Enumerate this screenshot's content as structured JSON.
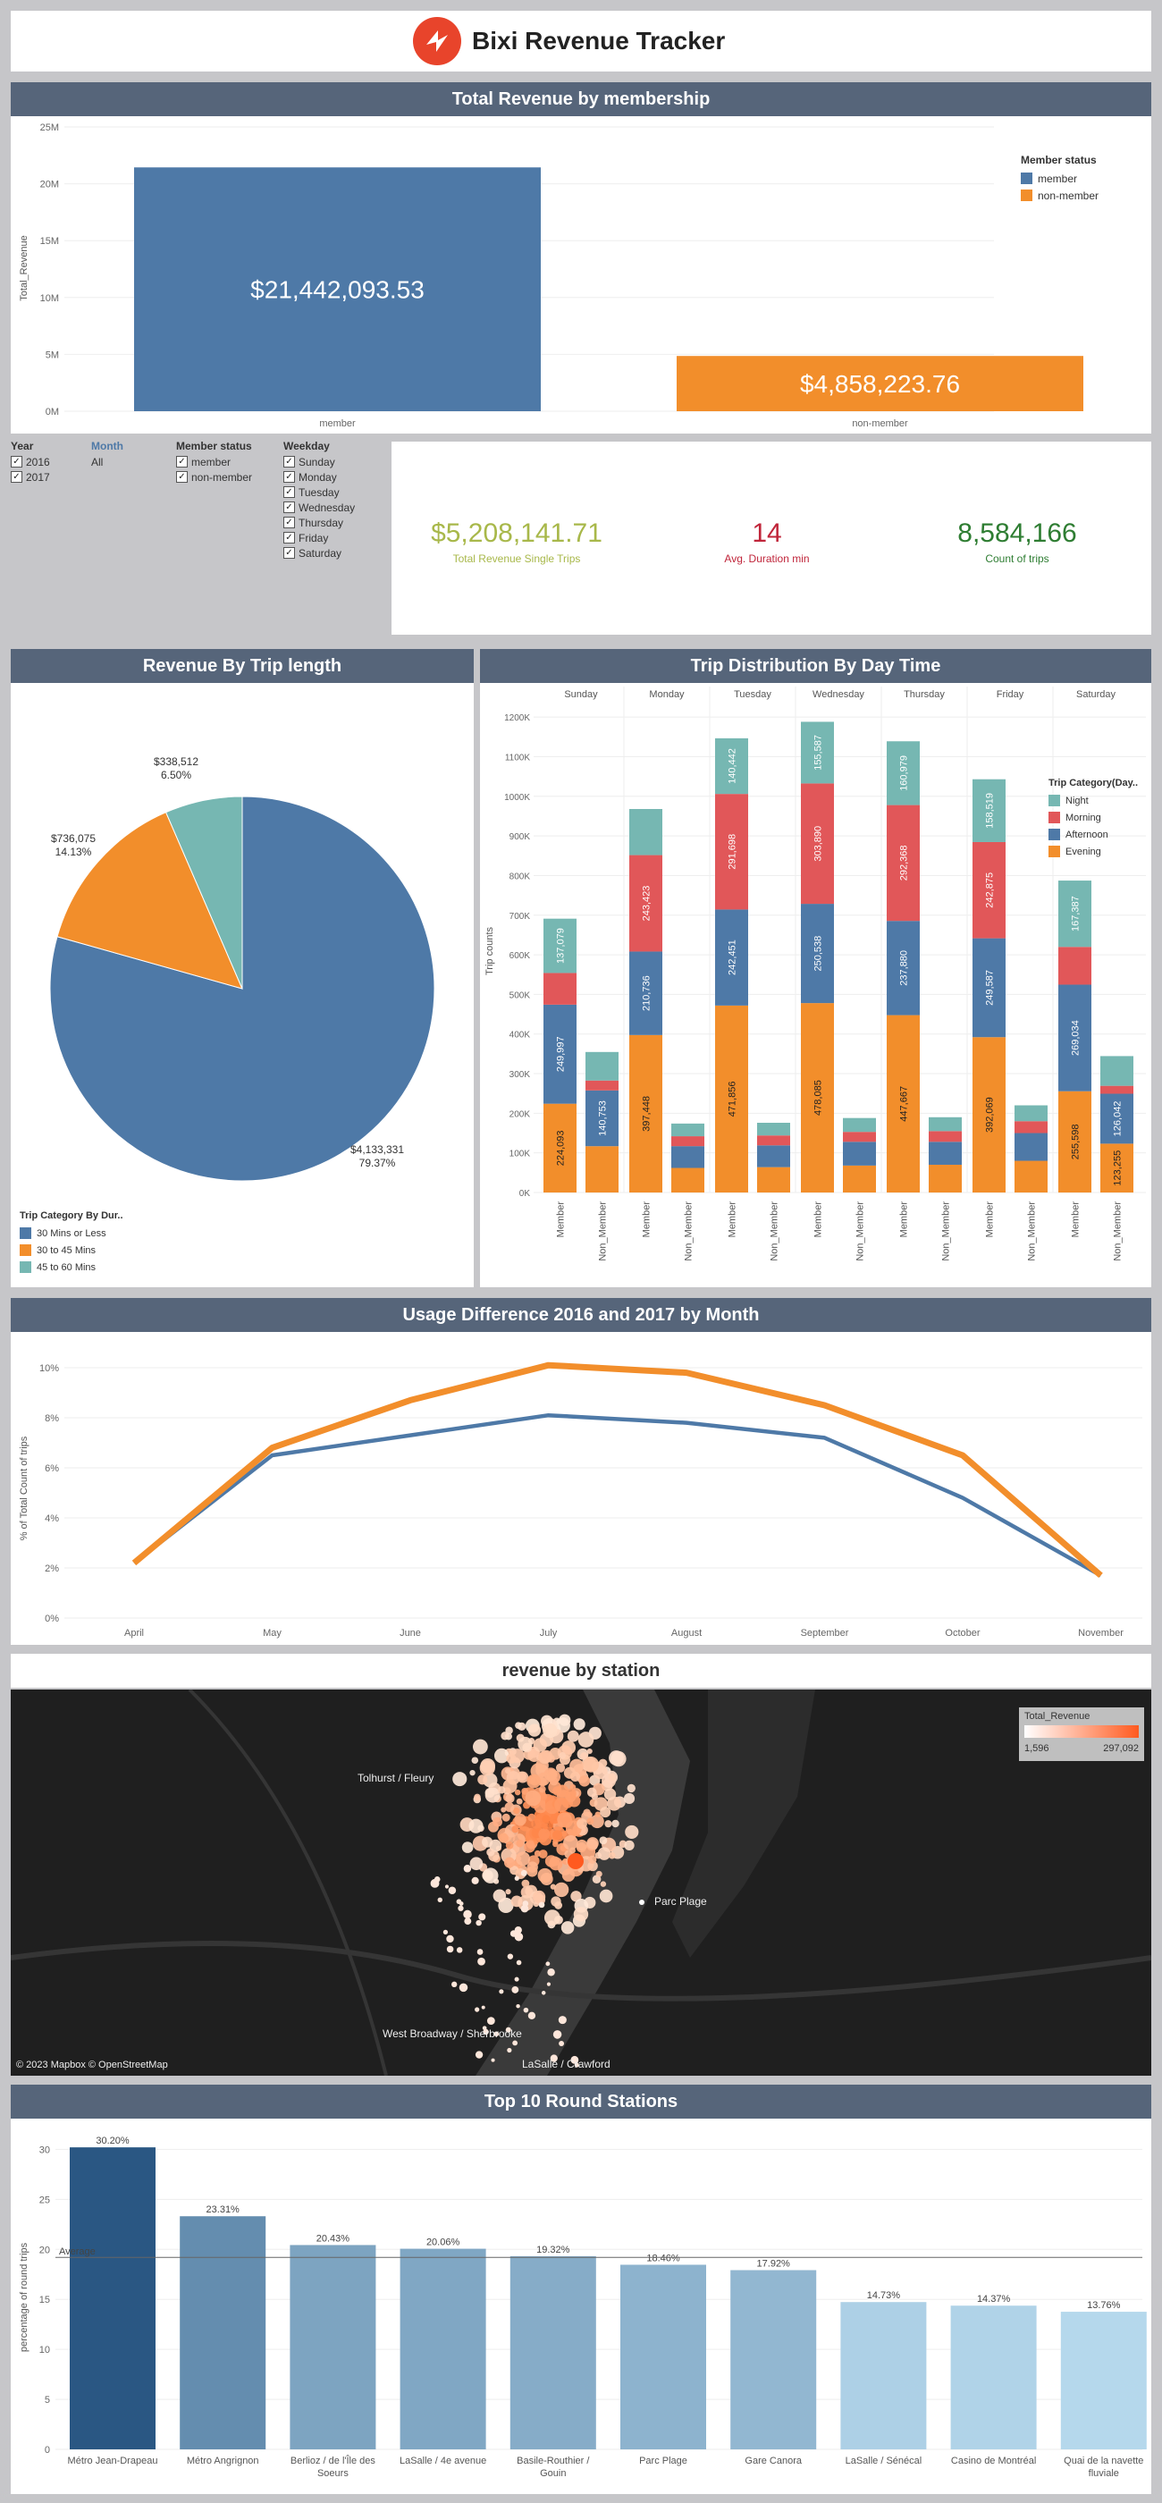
{
  "header": {
    "title": "Bixi Revenue Tracker",
    "logo": "bixi-logo-icon"
  },
  "colors": {
    "member": "#4e79a7",
    "non_member": "#f28e2b",
    "night": "#76b7b2",
    "morning": "#e15759",
    "afternoon": "#4e79a7",
    "evening": "#f28e2b",
    "panel_title_bg": "#56657a",
    "kpi_revenue": "#a8b84a",
    "kpi_duration": "#c0253a",
    "kpi_count": "#2e7d32",
    "year_2016": "#4e79a7",
    "year_2017": "#f28e2b",
    "round_dark": "#2a5783",
    "round_light": "#b5d8ec"
  },
  "revenue_by_membership": {
    "title": "Total Revenue by membership",
    "ylabel": "Total_Revenue",
    "yticks": [
      "0M",
      "5M",
      "10M",
      "15M",
      "20M",
      "25M"
    ],
    "legend_title": "Member status",
    "legend_items": [
      "member",
      "non-member"
    ],
    "value_labels": [
      "$21,442,093.53",
      "$4,858,223.76"
    ]
  },
  "filters": {
    "year_label": "Year",
    "years": [
      "2016",
      "2017"
    ],
    "month_label": "Month",
    "month_value": "All",
    "member_label": "Member status",
    "members": [
      "member",
      "non-member"
    ],
    "weekday_label": "Weekday",
    "weekdays": [
      "Sunday",
      "Monday",
      "Tuesday",
      "Wednesday",
      "Thursday",
      "Friday",
      "Saturday"
    ]
  },
  "kpis": {
    "revenue": {
      "value": "$5,208,141.71",
      "label": "Total Revenue Single Trips"
    },
    "duration": {
      "value": "14",
      "label": "Avg. Duration min"
    },
    "count": {
      "value": "8,584,166",
      "label": "Count of trips"
    }
  },
  "trip_length": {
    "title": "Revenue By Trip length",
    "labels": [
      "$4,133,331",
      "79.37%",
      "$736,075",
      "14.13%",
      "$338,512",
      "6.50%"
    ],
    "legend_title": "Trip Category By Dur..",
    "legend_items": [
      "30 Mins or Less",
      "30 to 45 Mins",
      "45 to 60 Mins"
    ]
  },
  "day_time": {
    "title": "Trip Distribution By Day Time",
    "ylabel": "Trip counts",
    "days": [
      "Sunday",
      "Monday",
      "Tuesday",
      "Wednesday",
      "Thursday",
      "Friday",
      "Saturday"
    ],
    "member_labels": [
      "Member",
      "Non_Member"
    ],
    "legend_title": "Trip Category(Day..",
    "legend_items": [
      "Night",
      "Morning",
      "Afternoon",
      "Evening"
    ],
    "yticks": [
      "0K",
      "100K",
      "200K",
      "300K",
      "400K",
      "500K",
      "600K",
      "700K",
      "800K",
      "900K",
      "1000K",
      "1100K",
      "1200K"
    ]
  },
  "usage": {
    "title": "Usage Difference 2016 and 2017 by Month",
    "ylabel": "% of Total Count of trips",
    "yticks": [
      "0%",
      "2%",
      "4%",
      "6%",
      "8%",
      "10%"
    ],
    "months": [
      "April",
      "May",
      "June",
      "July",
      "August",
      "September",
      "October",
      "November"
    ]
  },
  "station_map": {
    "title": "revenue by station",
    "legend_title": "Total_Revenue",
    "legend_min": "1,596",
    "legend_max": "297,092",
    "labels": [
      "Tolhurst / Fleury",
      "Parc Plage",
      "West Broadway / Sherbrooke",
      "LaSalle / Crawford"
    ],
    "attribution": "© 2023 Mapbox © OpenStreetMap"
  },
  "round_stations": {
    "title": "Top 10 Round Stations",
    "ylabel": "percentage of round trips",
    "yticks": [
      "0",
      "5",
      "10",
      "15",
      "20",
      "25",
      "30"
    ],
    "average_label": "Average"
  },
  "chart_data": [
    {
      "type": "bar",
      "title": "Total Revenue by membership",
      "categories": [
        "member",
        "non-member"
      ],
      "values": [
        21442093.53,
        4858223.76
      ],
      "ylabel": "Total_Revenue",
      "ylim": [
        0,
        25000000
      ],
      "legend": "top-right"
    },
    {
      "type": "pie",
      "title": "Revenue By Trip length",
      "categories": [
        "30 Mins or Less",
        "30 to 45 Mins",
        "45 to 60 Mins"
      ],
      "values": [
        4133331,
        736075,
        338512
      ],
      "percentages": [
        79.37,
        14.13,
        6.5
      ]
    },
    {
      "type": "bar",
      "stacked": true,
      "title": "Trip Distribution By Day Time",
      "categories": [
        "Sunday Member",
        "Sunday Non_Member",
        "Monday Member",
        "Monday Non_Member",
        "Tuesday Member",
        "Tuesday Non_Member",
        "Wednesday Member",
        "Wednesday Non_Member",
        "Thursday Member",
        "Thursday Non_Member",
        "Friday Member",
        "Friday Non_Member",
        "Saturday Member",
        "Saturday Non_Member"
      ],
      "series": [
        {
          "name": "Evening",
          "values": [
            224093,
            116889,
            397448,
            62000,
            471856,
            64000,
            478085,
            68000,
            447667,
            70000,
            392069,
            80000,
            255598,
            123255
          ]
        },
        {
          "name": "Afternoon",
          "values": [
            249997,
            140753,
            210736,
            55000,
            242451,
            55000,
            250538,
            60000,
            237880,
            58000,
            249587,
            70000,
            269034,
            126042
          ]
        },
        {
          "name": "Morning",
          "values": [
            80000,
            25000,
            243423,
            25000,
            291698,
            25000,
            303890,
            25000,
            292368,
            27000,
            242875,
            30000,
            95291,
            20000
          ]
        },
        {
          "name": "Night",
          "values": [
            137079,
            72000,
            116364,
            32000,
            140442,
            32000,
            155587,
            35000,
            160979,
            35000,
            158519,
            40000,
            167387,
            75000
          ]
        }
      ],
      "ylabel": "Trip counts",
      "ylim": [
        0,
        1250000
      ],
      "legend": "right"
    },
    {
      "type": "line",
      "title": "Usage Difference 2016 and 2017 by Month",
      "x": [
        "April",
        "May",
        "June",
        "July",
        "August",
        "September",
        "October",
        "November"
      ],
      "series": [
        {
          "name": "2016",
          "values": [
            2.2,
            6.5,
            7.3,
            8.1,
            7.8,
            7.2,
            4.8,
            1.7
          ]
        },
        {
          "name": "2017",
          "values": [
            2.2,
            6.8,
            8.7,
            10.1,
            9.8,
            8.5,
            6.5,
            1.7
          ]
        }
      ],
      "ylabel": "% of Total Count of trips",
      "ylim": [
        0,
        10.5
      ]
    },
    {
      "type": "bar",
      "title": "Top 10 Round Stations",
      "categories": [
        "Métro Jean-Drapeau",
        "Métro Angrignon",
        "Berlioz / de l'Île des Soeurs",
        "LaSalle / 4e avenue",
        "Basile-Routhier / Gouin",
        "Parc Plage",
        "Gare Canora",
        "LaSalle / Sénécal",
        "Casino de Montréal",
        "Quai de la navette fluviale"
      ],
      "values": [
        30.2,
        23.31,
        20.43,
        20.06,
        19.32,
        18.46,
        17.92,
        14.73,
        14.37,
        13.76
      ],
      "value_labels": [
        "30.20%",
        "23.31%",
        "20.43%",
        "20.06%",
        "19.32%",
        "18.46%",
        "17.92%",
        "14.73%",
        "14.37%",
        "13.76%"
      ],
      "ylabel": "percentage of round trips",
      "ylim": [
        0,
        32
      ],
      "average": 19.2
    }
  ]
}
